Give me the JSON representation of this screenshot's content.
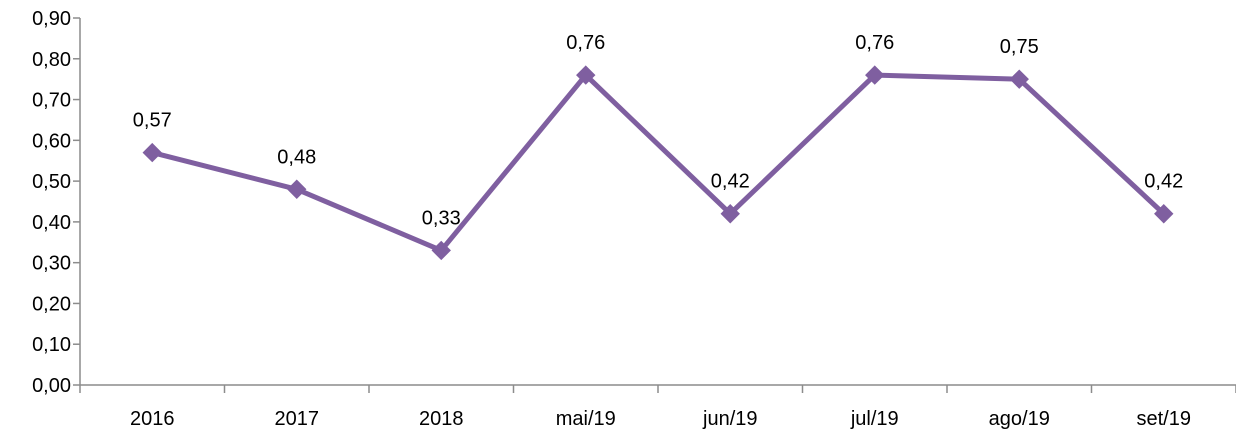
{
  "chart_data": {
    "type": "line",
    "title": "",
    "xlabel": "",
    "ylabel": "",
    "categories": [
      "2016",
      "2017",
      "2018",
      "mai/19",
      "jun/19",
      "jul/19",
      "ago/19",
      "set/19"
    ],
    "series": [
      {
        "values": [
          0.57,
          0.48,
          0.33,
          0.76,
          0.42,
          0.76,
          0.75,
          0.42
        ],
        "labels": [
          "0,57",
          "0,48",
          "0,33",
          "0,76",
          "0,42",
          "0,76",
          "0,75",
          "0,42"
        ],
        "color": "#7f5fa0",
        "marker": "diamond"
      }
    ],
    "ylim": [
      0,
      0.9
    ],
    "yticks": [
      0,
      0.1,
      0.2,
      0.3,
      0.4,
      0.5,
      0.6,
      0.7,
      0.8,
      0.9
    ],
    "ytick_labels": [
      "0,00",
      "0,10",
      "0,20",
      "0,30",
      "0,40",
      "0,50",
      "0,60",
      "0,70",
      "0,80",
      "0,90"
    ],
    "grid": false,
    "legend": "none",
    "axis_color": "#8c8c8c"
  }
}
